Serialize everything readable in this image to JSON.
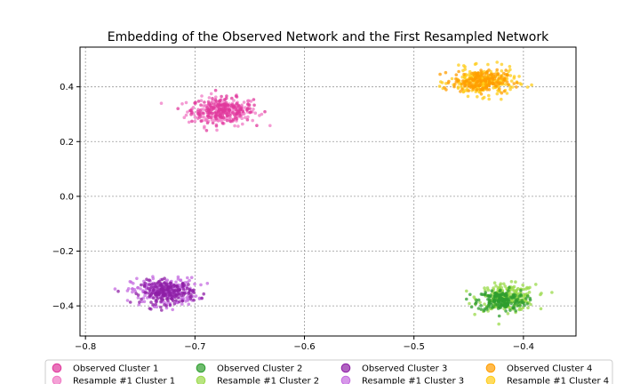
{
  "chart_data": {
    "type": "scatter",
    "title": "Embedding of the Observed Network and the First Resampled Network",
    "xlabel": "",
    "ylabel": "",
    "xlim": [
      -0.805,
      -0.352
    ],
    "ylim": [
      -0.51,
      0.545
    ],
    "grid": true,
    "grid_style": "dotted",
    "x_ticks": [
      -0.8,
      -0.7,
      -0.6,
      -0.5,
      -0.4
    ],
    "x_tick_labels": [
      "−0.8",
      "−0.7",
      "−0.6",
      "−0.5",
      "−0.4"
    ],
    "y_ticks": [
      -0.4,
      -0.2,
      0.0,
      0.2,
      0.4
    ],
    "y_tick_labels": [
      "−0.4",
      "−0.2",
      "0.0",
      "0.2",
      "0.4"
    ],
    "legend_position": "bottom",
    "series": [
      {
        "name": "Observed Cluster 1",
        "color": "#e0389c",
        "center": [
          -0.675,
          0.315
        ],
        "spread": [
          0.014,
          0.022
        ],
        "n": 170
      },
      {
        "name": "Resample #1 Cluster 1",
        "color": "#f079c4",
        "center": [
          -0.675,
          0.31
        ],
        "spread": [
          0.016,
          0.026
        ],
        "n": 200
      },
      {
        "name": "Observed Cluster 2",
        "color": "#2f9e2f",
        "center": [
          -0.42,
          -0.38
        ],
        "spread": [
          0.011,
          0.02
        ],
        "n": 180
      },
      {
        "name": "Resample #1 Cluster 2",
        "color": "#9ad94a",
        "center": [
          -0.415,
          -0.37
        ],
        "spread": [
          0.013,
          0.024
        ],
        "n": 220
      },
      {
        "name": "Observed Cluster 3",
        "color": "#8e1fa6",
        "center": [
          -0.725,
          -0.35
        ],
        "spread": [
          0.012,
          0.021
        ],
        "n": 190
      },
      {
        "name": "Resample #1 Cluster 3",
        "color": "#c46be0",
        "center": [
          -0.728,
          -0.348
        ],
        "spread": [
          0.015,
          0.025
        ],
        "n": 230
      },
      {
        "name": "Observed Cluster 4",
        "color": "#ff9d00",
        "center": [
          -0.44,
          0.42
        ],
        "spread": [
          0.012,
          0.02
        ],
        "n": 180
      },
      {
        "name": "Resample #1 Cluster 4",
        "color": "#ffcc1a",
        "center": [
          -0.437,
          0.417
        ],
        "spread": [
          0.015,
          0.025
        ],
        "n": 220
      }
    ]
  }
}
